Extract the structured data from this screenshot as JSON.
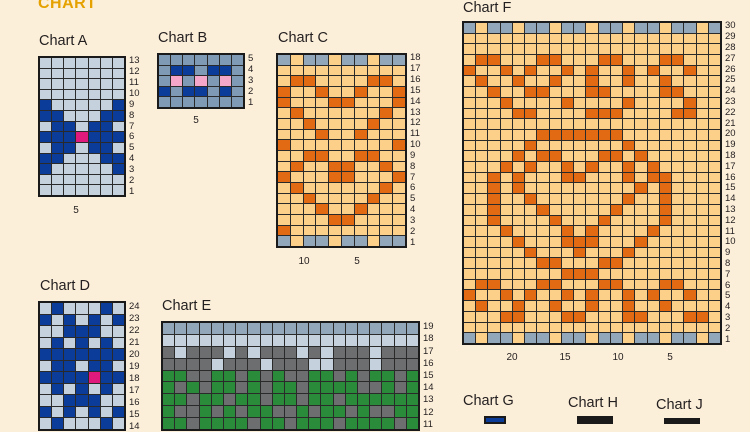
{
  "page": {
    "heading": "CHART"
  },
  "palette": {
    "light_blue": "#c5d2de",
    "navy": "#0c3c9a",
    "magenta": "#e0197d",
    "steel": "#7f9ab5",
    "pink": "#f4a7c8",
    "peach": "#fdd08a",
    "orange": "#e26a12",
    "gray": "#6d6e70",
    "green": "#2a8b3b",
    "slate": "#93a7ba"
  },
  "charts": {
    "A": {
      "title": "Chart A",
      "row_labels": [
        "13",
        "12",
        "11",
        "10",
        "9",
        "8",
        "7",
        "6",
        "5",
        "4",
        "3",
        "2",
        "1"
      ],
      "col_labels": [
        "5"
      ]
    },
    "B": {
      "title": "Chart B",
      "row_labels": [
        "5",
        "4",
        "3",
        "2",
        "1"
      ],
      "col_labels": [
        "5"
      ]
    },
    "C": {
      "title": "Chart C",
      "row_labels": [
        "18",
        "17",
        "16",
        "15",
        "14",
        "13",
        "12",
        "11",
        "10",
        "9",
        "8",
        "7",
        "6",
        "5",
        "4",
        "3",
        "2",
        "1"
      ],
      "col_labels": [
        "10",
        "5"
      ]
    },
    "D": {
      "title": "Chart D",
      "row_labels": [
        "24",
        "23",
        "22",
        "21",
        "20",
        "19",
        "18",
        "17",
        "16",
        "15",
        "14"
      ],
      "col_labels": []
    },
    "E": {
      "title": "Chart E",
      "row_labels": [
        "19",
        "18",
        "17",
        "16",
        "15",
        "14",
        "13",
        "12",
        "11"
      ],
      "col_labels": []
    },
    "F": {
      "title": "Chart F",
      "row_labels": [
        "30",
        "29",
        "28",
        "27",
        "26",
        "25",
        "24",
        "23",
        "22",
        "21",
        "20",
        "19",
        "18",
        "17",
        "16",
        "15",
        "14",
        "13",
        "12",
        "11",
        "10",
        "9",
        "8",
        "7",
        "6",
        "5",
        "4",
        "3",
        "2",
        "1"
      ],
      "col_labels": [
        "20",
        "15",
        "10",
        "5"
      ]
    },
    "G": {
      "title": "Chart G",
      "row_labels": [],
      "col_labels": []
    },
    "H": {
      "title": "Chart H",
      "row_labels": [],
      "col_labels": []
    },
    "J": {
      "title": "Chart J",
      "row_labels": [],
      "col_labels": []
    }
  }
}
